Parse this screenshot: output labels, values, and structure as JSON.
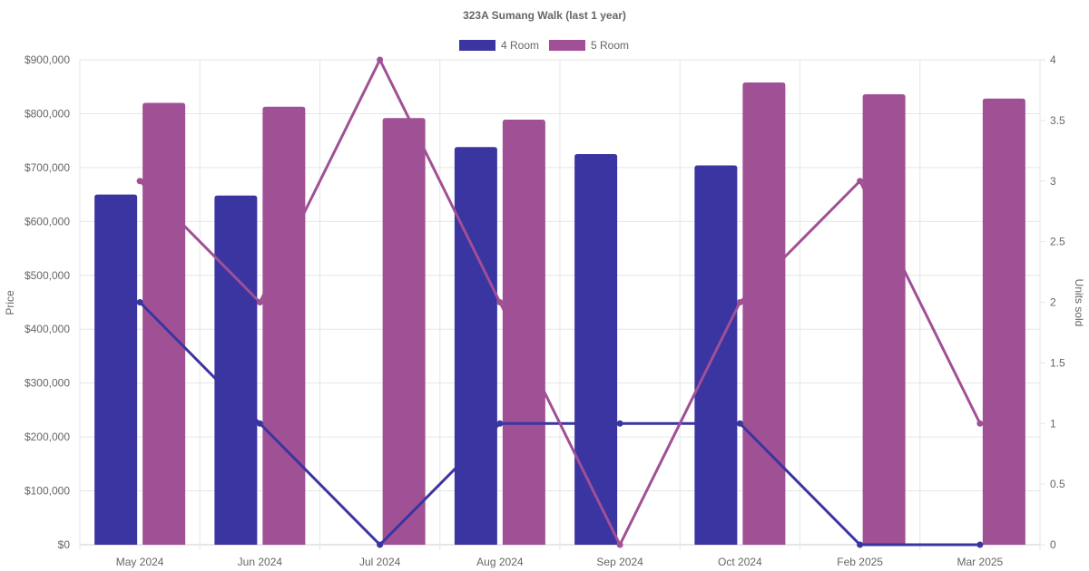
{
  "chart_data": {
    "type": "bar",
    "title": "323A Sumang Walk (last 1 year)",
    "categories": [
      "May 2024",
      "Jun 2024",
      "Jul 2024",
      "Aug 2024",
      "Sep 2024",
      "Oct 2024",
      "Feb 2025",
      "Mar 2025"
    ],
    "series": [
      {
        "name": "4 Room",
        "type": "bar",
        "axis": "left",
        "color": "#3a35a0",
        "values": [
          650000,
          648000,
          null,
          738000,
          725000,
          704000,
          null,
          null
        ]
      },
      {
        "name": "5 Room",
        "type": "bar",
        "axis": "left",
        "color": "#a05095",
        "values": [
          820000,
          813000,
          792000,
          789000,
          null,
          858000,
          836000,
          828000
        ]
      },
      {
        "type": "line",
        "axis": "right",
        "color": "#3a35a0",
        "values": [
          2,
          1,
          0,
          1,
          1,
          1,
          0,
          0
        ]
      },
      {
        "type": "line",
        "axis": "right",
        "color": "#a05095",
        "values": [
          3,
          2,
          4,
          2,
          0,
          2,
          3,
          1
        ]
      }
    ],
    "ylabel": "Price",
    "y2label": "Units sold",
    "ylim": [
      0,
      900000
    ],
    "y2lim": [
      0,
      4
    ],
    "y_ticks": [
      "$0",
      "$100,000",
      "$200,000",
      "$300,000",
      "$400,000",
      "$500,000",
      "$600,000",
      "$700,000",
      "$800,000",
      "$900,000"
    ],
    "y2_ticks": [
      "0",
      "0.5",
      "1",
      "1.5",
      "2",
      "2.5",
      "3",
      "3.5",
      "4"
    ],
    "legend": "top",
    "grid": true
  }
}
